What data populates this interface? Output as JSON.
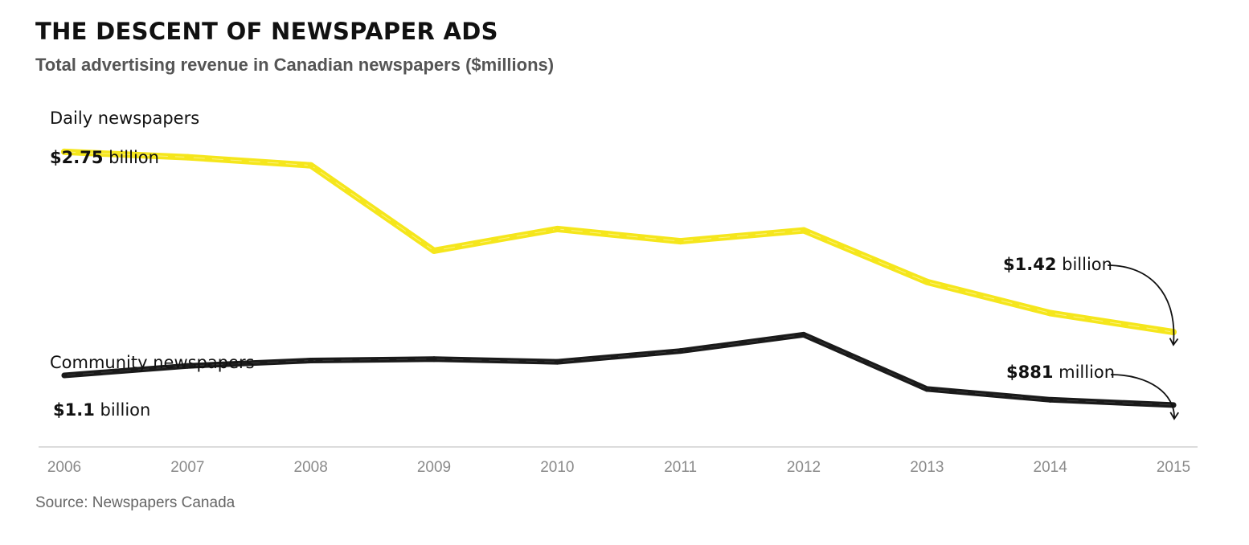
{
  "header": {
    "title": "THE DESCENT OF NEWSPAPER ADS",
    "subtitle": "Total advertising revenue in Canadian newspapers ($millions)"
  },
  "footer": {
    "source": "Source: Newspapers Canada"
  },
  "chart_data": {
    "type": "line",
    "title": "THE DESCENT OF NEWSPAPER ADS",
    "subtitle": "Total advertising revenue in Canadian newspapers ($millions)",
    "xlabel": "",
    "ylabel": "",
    "x": [
      "2006",
      "2007",
      "2008",
      "2009",
      "2010",
      "2011",
      "2012",
      "2013",
      "2014",
      "2015"
    ],
    "ylim": [
      750,
      2850
    ],
    "grid": false,
    "legend": "none",
    "series": [
      {
        "name": "Daily newspapers",
        "color": "#f5e61c",
        "values": [
          2750,
          2710,
          2650,
          2020,
          2180,
          2090,
          2170,
          1790,
          1560,
          1420
        ],
        "start_label": {
          "amount": "$2.75",
          "unit": " billion"
        },
        "end_label": {
          "amount": "$1.42",
          "unit": " billion"
        }
      },
      {
        "name": "Community newspapers",
        "color": "#1a1a1a",
        "values": [
          1100,
          1170,
          1210,
          1220,
          1200,
          1280,
          1400,
          1000,
          920,
          881
        ],
        "start_label": {
          "amount": "$1.1",
          "unit": " billion"
        },
        "end_label": {
          "amount": "$881",
          "unit": " million"
        }
      }
    ]
  }
}
